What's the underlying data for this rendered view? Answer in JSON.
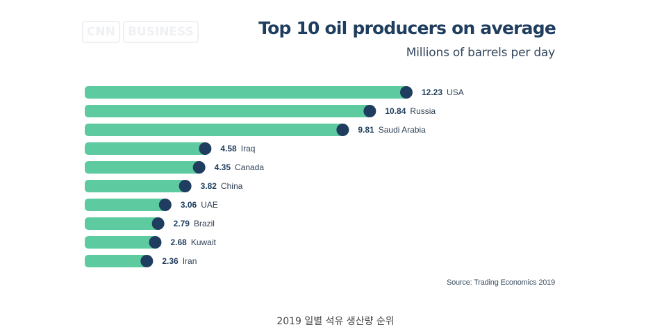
{
  "logo_text": "CNN BUSINESS",
  "caption": "2019 일별 석유 생산량 순위",
  "colors": {
    "bar": "#5ecaa0",
    "marker": "#1f3d5e",
    "title": "#1f3d5e"
  },
  "chart_data": {
    "type": "bar",
    "orientation": "horizontal",
    "title": "Top 10 oil producers on average",
    "subtitle": "Millions of barrels per day",
    "source": "Source: Trading Economics 2019",
    "categories": [
      "USA",
      "Russia",
      "Saudi Arabia",
      "Iraq",
      "Canada",
      "China",
      "UAE",
      "Brazil",
      "Kuwait",
      "Iran"
    ],
    "values": [
      12.23,
      10.84,
      9.81,
      4.58,
      4.35,
      3.82,
      3.06,
      2.79,
      2.68,
      2.36
    ],
    "value_labels": [
      "12.23",
      "10.84",
      "9.81",
      "4.58",
      "4.35",
      "3.82",
      "3.06",
      "2.79",
      "2.68",
      "2.36"
    ],
    "xlim": [
      0,
      12.23
    ],
    "grid": false,
    "legend": "none"
  }
}
